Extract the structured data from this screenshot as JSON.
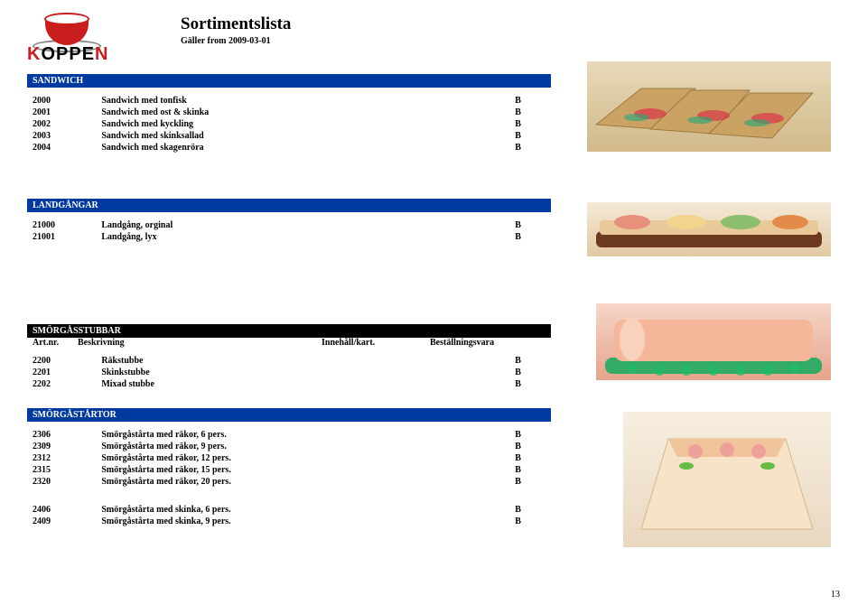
{
  "logo": {
    "brand": "KOPPEN"
  },
  "header": {
    "title": "Sortimentslista",
    "subtitle": "Gäller from 2009-03-01"
  },
  "sections": {
    "sandwich": {
      "label": "SANDWICH",
      "rows": [
        {
          "art": "2000",
          "desc": "Sandwich med tonfisk",
          "mark": "B"
        },
        {
          "art": "2001",
          "desc": "Sandwich med ost & skinka",
          "mark": "B"
        },
        {
          "art": "2002",
          "desc": "Sandwich med kyckling",
          "mark": "B"
        },
        {
          "art": "2003",
          "desc": "Sandwich med skinksallad",
          "mark": "B"
        },
        {
          "art": "2004",
          "desc": "Sandwich med skagenröra",
          "mark": "B"
        }
      ]
    },
    "landgangar": {
      "label": "LANDGÅNGAR",
      "rows": [
        {
          "art": "21000",
          "desc": "Landgång, orginal",
          "mark": "B"
        },
        {
          "art": "21001",
          "desc": "Landgång, lyx",
          "mark": "B"
        }
      ]
    },
    "stubbar": {
      "label": "SMÖRGÅSSTUBBAR",
      "cols": {
        "c1": "Art.nr.",
        "c2": "Beskrivning",
        "c3": "Innehåll/kart.",
        "c4": "Beställningsvara"
      },
      "rows": [
        {
          "art": "2200",
          "desc": "Räkstubbe",
          "mark": "B"
        },
        {
          "art": "2201",
          "desc": "Skinkstubbe",
          "mark": "B"
        },
        {
          "art": "2202",
          "desc": "Mixad stubbe",
          "mark": "B"
        }
      ]
    },
    "tartor": {
      "label": "SMÖRGÅSTÅRTOR",
      "rows1": [
        {
          "art": "2306",
          "desc": "Smörgåstårta med räkor, 6 pers.",
          "mark": "B"
        },
        {
          "art": "2309",
          "desc": "Smörgåstårta med räkor, 9 pers.",
          "mark": "B"
        },
        {
          "art": "2312",
          "desc": "Smörgåstårta med räkor, 12 pers.",
          "mark": "B"
        },
        {
          "art": "2315",
          "desc": "Smörgåstårta med räkor, 15 pers.",
          "mark": "B"
        },
        {
          "art": "2320",
          "desc": "Smörgåstårta med räkor, 20 pers.",
          "mark": "B"
        }
      ],
      "rows2": [
        {
          "art": "2406",
          "desc": "Smörgåstårta med skinka, 6 pers.",
          "mark": "B"
        },
        {
          "art": "2409",
          "desc": "Smörgåstårta med skinka, 9 pers.",
          "mark": "B"
        }
      ]
    }
  },
  "page": {
    "num": "13"
  },
  "style": {
    "bar_blue": "#003aa0",
    "bar_black": "#000000",
    "logo_red": "#c81e1e",
    "text_color": "#000000",
    "body_width": 960,
    "body_height": 670,
    "content_width": 580
  }
}
